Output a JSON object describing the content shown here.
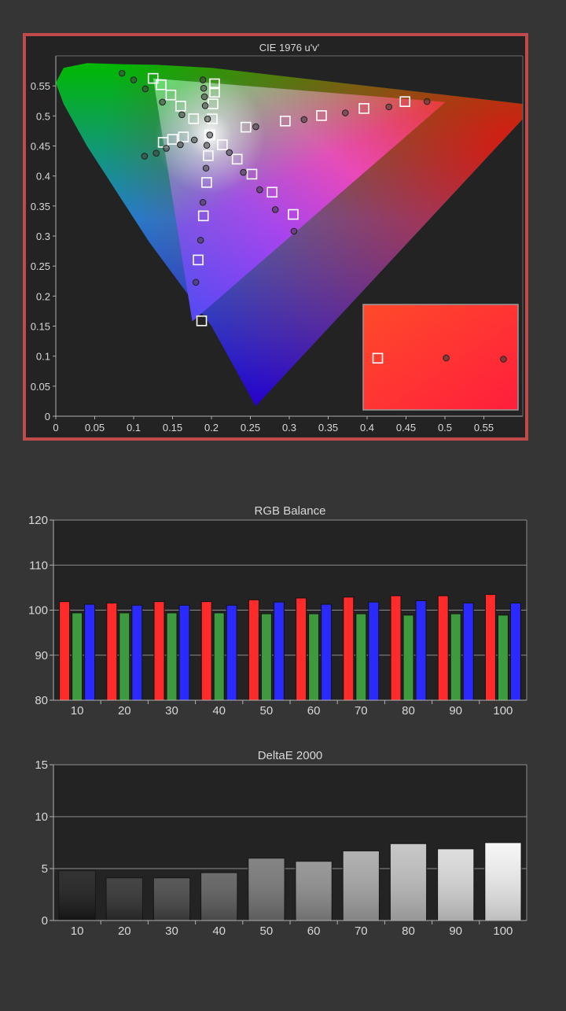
{
  "chart_data": [
    {
      "type": "scatter",
      "title": "CIE 1976 u'v'",
      "xlim": [
        0,
        0.6
      ],
      "ylim": [
        0,
        0.6
      ],
      "x_ticks": [
        "0",
        "0.05",
        "0.1",
        "0.15",
        "0.2",
        "0.25",
        "0.3",
        "0.35",
        "0.4",
        "0.45",
        "0.5",
        "0.55"
      ],
      "y_ticks": [
        "0",
        "0.05",
        "0.1",
        "0.15",
        "0.2",
        "0.25",
        "0.3",
        "0.35",
        "0.4",
        "0.45",
        "0.5",
        "0.55"
      ],
      "grid": false,
      "frame_color": "#c04a4a",
      "gamut": {
        "red": [
          0.5007,
          0.523
        ],
        "green": [
          0.125,
          0.5625
        ],
        "blue": [
          0.1754,
          0.1579
        ],
        "white": [
          0.1978,
          0.4683
        ]
      },
      "series": [
        {
          "marker": "square",
          "points": [
            [
              0.1978,
              0.4683
            ],
            [
              0.2442,
              0.4813
            ],
            [
              0.2948,
              0.4915
            ],
            [
              0.3414,
              0.5006
            ],
            [
              0.396,
              0.5124
            ],
            [
              0.4487,
              0.5238
            ],
            [
              0.1874,
              0.1588
            ],
            [
              0.1829,
              0.2602
            ],
            [
              0.1896,
              0.3336
            ],
            [
              0.1938,
              0.3892
            ],
            [
              0.1958,
              0.4339
            ],
            [
              0.125,
              0.5625
            ],
            [
              0.1354,
              0.5519
            ],
            [
              0.1479,
              0.5349
            ],
            [
              0.1604,
              0.5164
            ],
            [
              0.1771,
              0.4953
            ],
            [
              0.204,
              0.5535
            ],
            [
              0.204,
              0.5395
            ],
            [
              0.202,
              0.52
            ],
            [
              0.201,
              0.495
            ],
            [
              0.305,
              0.336
            ],
            [
              0.278,
              0.373
            ],
            [
              0.252,
              0.403
            ],
            [
              0.233,
              0.428
            ],
            [
              0.214,
              0.452
            ],
            [
              0.138,
              0.456
            ],
            [
              0.15,
              0.461
            ],
            [
              0.164,
              0.465
            ]
          ]
        },
        {
          "marker": "circle",
          "points": [
            [
              0.1978,
              0.4683
            ],
            [
              0.257,
              0.482
            ],
            [
              0.319,
              0.494
            ],
            [
              0.372,
              0.505
            ],
            [
              0.428,
              0.515
            ],
            [
              0.477,
              0.524
            ],
            [
              0.18,
              0.223
            ],
            [
              0.186,
              0.293
            ],
            [
              0.189,
              0.356
            ],
            [
              0.193,
              0.413
            ],
            [
              0.194,
              0.451
            ],
            [
              0.085,
              0.571
            ],
            [
              0.1,
              0.56
            ],
            [
              0.115,
              0.545
            ],
            [
              0.137,
              0.523
            ],
            [
              0.162,
              0.502
            ],
            [
              0.189,
              0.56
            ],
            [
              0.19,
              0.546
            ],
            [
              0.191,
              0.532
            ],
            [
              0.192,
              0.517
            ],
            [
              0.195,
              0.495
            ],
            [
              0.306,
              0.308
            ],
            [
              0.282,
              0.344
            ],
            [
              0.262,
              0.377
            ],
            [
              0.241,
              0.406
            ],
            [
              0.223,
              0.439
            ],
            [
              0.114,
              0.433
            ],
            [
              0.129,
              0.438
            ],
            [
              0.142,
              0.446
            ],
            [
              0.16,
              0.452
            ],
            [
              0.178,
              0.46
            ]
          ]
        }
      ],
      "inset": {
        "color": "#ff2d2d",
        "points": [
          {
            "x": 0.477,
            "y": 0.524,
            "marker": "circle"
          },
          {
            "x": 0.4487,
            "y": 0.5238,
            "marker": "square"
          },
          {
            "x": 0.5007,
            "y": 0.523,
            "marker": "circle"
          }
        ]
      }
    },
    {
      "type": "bar",
      "title": "RGB Balance",
      "categories": [
        "10",
        "20",
        "30",
        "40",
        "50",
        "60",
        "70",
        "80",
        "90",
        "100"
      ],
      "ylim": [
        80,
        120
      ],
      "y_ticks": [
        "80",
        "90",
        "100",
        "110",
        "120"
      ],
      "grid": true,
      "series": [
        {
          "color": "#ff2a2a",
          "values": [
            101.9,
            101.6,
            101.9,
            101.9,
            102.3,
            102.7,
            102.9,
            103.2,
            103.2,
            103.5
          ]
        },
        {
          "color": "#3e9a3e",
          "values": [
            99.4,
            99.4,
            99.4,
            99.4,
            99.2,
            99.2,
            99.2,
            98.9,
            99.2,
            98.9
          ]
        },
        {
          "color": "#2a2aff",
          "values": [
            101.3,
            101.1,
            101.1,
            101.1,
            101.8,
            101.3,
            101.8,
            102.1,
            101.6,
            101.6
          ]
        }
      ]
    },
    {
      "type": "bar",
      "title": "DeltaE 2000",
      "categories": [
        "10",
        "20",
        "30",
        "40",
        "50",
        "60",
        "70",
        "80",
        "90",
        "100"
      ],
      "ylim": [
        0,
        15
      ],
      "y_ticks": [
        "0",
        "5",
        "10",
        "15"
      ],
      "grid": true,
      "values": [
        4.8,
        4.1,
        4.1,
        4.6,
        6.0,
        5.7,
        6.7,
        7.4,
        6.9,
        7.5
      ],
      "bar_colors": [
        "#1a1a1a",
        "#2f2f2f",
        "#454545",
        "#5c5c5c",
        "#767676",
        "#8e8e8e",
        "#a8a8a8",
        "#c0c0c0",
        "#dadada",
        "#f4f4f4"
      ]
    }
  ]
}
